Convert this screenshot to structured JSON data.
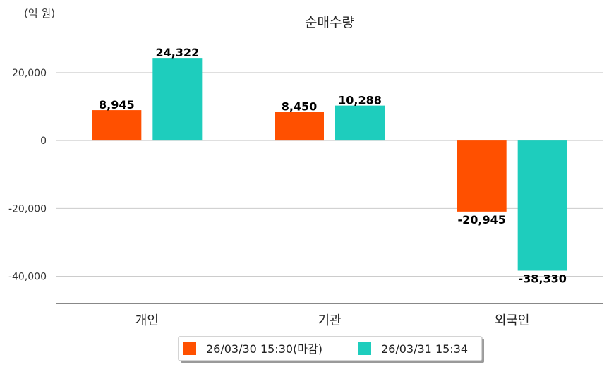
{
  "chart_data": {
    "type": "bar",
    "title": "순매수량",
    "unit_label": "(억 원)",
    "categories": [
      "개인",
      "기관",
      "외국인"
    ],
    "series": [
      {
        "name": "26/03/30 15:30(마감)",
        "color": "#ff5000",
        "values": [
          8945,
          8450,
          -20945
        ],
        "labels": [
          "8,945",
          "8,450",
          "-20,945"
        ]
      },
      {
        "name": "26/03/31 15:34",
        "color": "#1ecdbd",
        "values": [
          24322,
          10288,
          -38330
        ],
        "labels": [
          "24,322",
          "10,288",
          "-38,330"
        ]
      }
    ],
    "yticks": [
      20000,
      0,
      -20000,
      -40000
    ],
    "ytick_labels": [
      "20,000",
      "0",
      "-20,000",
      "-40,000"
    ],
    "ylim": [
      -48000,
      31000
    ],
    "grid": true,
    "legend": "bottom"
  }
}
